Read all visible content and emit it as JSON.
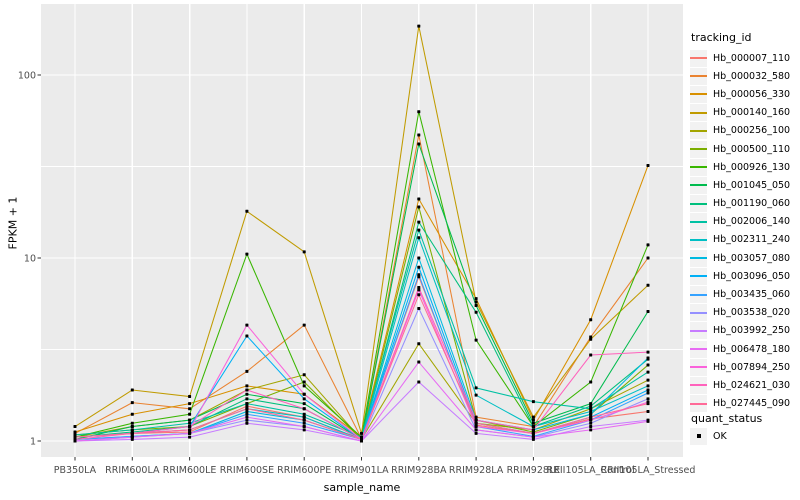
{
  "y_axis": {
    "title": "FPKM + 1",
    "tick_labels": [
      "100",
      "10",
      "1"
    ],
    "tick_values": [
      100,
      10,
      1
    ]
  },
  "x_axis": {
    "title": "sample_name"
  },
  "legend": {
    "tracking_title": "tracking_id",
    "quant_title": "quant_status",
    "quant_items": [
      {
        "label": "OK",
        "marker_color": "#000000"
      }
    ]
  },
  "chart_data": {
    "type": "line",
    "title": "",
    "xlabel": "sample_name",
    "ylabel": "FPKM + 1",
    "scale_y": "log10",
    "ylim": [
      0.82,
      240
    ],
    "y_major_ticks": [
      1,
      10,
      100
    ],
    "y_minor_ticks": [
      3.162,
      31.62
    ],
    "grid": true,
    "legend_position": "right",
    "point_color": "#000000",
    "panel_background": "#EBEBEB",
    "gridline_color": "#FFFFFF",
    "x_categories": [
      "PB350LA",
      "RRIM600LA",
      "RRIM600LE",
      "RRIM600SE",
      "RRIM600PE",
      "RRIM901LA",
      "RRIM928BA",
      "RRIM928LA",
      "RRIM928LE",
      "RRII105LA_Control",
      "RRII105LA_Stressed"
    ],
    "series": [
      {
        "name": "Hb_000007_110",
        "color": "#F8766D",
        "values": [
          1.05,
          1.1,
          1.12,
          1.55,
          1.35,
          1.02,
          7.9,
          1.22,
          1.1,
          1.32,
          1.45
        ]
      },
      {
        "name": "Hb_000032_580",
        "color": "#EA8331",
        "values": [
          1.1,
          1.62,
          1.5,
          2.4,
          4.3,
          1.03,
          47,
          1.35,
          1.2,
          3.7,
          10.0
        ]
      },
      {
        "name": "Hb_000056_330",
        "color": "#D89000",
        "values": [
          1.12,
          1.4,
          1.6,
          2.0,
          1.8,
          1.05,
          21,
          6.0,
          1.3,
          4.6,
          32
        ]
      },
      {
        "name": "Hb_000140_160",
        "color": "#C09B00",
        "values": [
          1.2,
          1.9,
          1.75,
          18,
          10.8,
          1.1,
          185,
          5.75,
          1.35,
          3.6,
          7.1
        ]
      },
      {
        "name": "Hb_000256_100",
        "color": "#A3A500",
        "values": [
          1.05,
          1.2,
          1.3,
          1.9,
          2.3,
          1.02,
          3.4,
          1.25,
          1.15,
          1.5,
          2.15
        ]
      },
      {
        "name": "Hb_000500_110",
        "color": "#7CAE00",
        "values": [
          1.08,
          1.15,
          1.2,
          1.6,
          2.1,
          1.02,
          19,
          1.3,
          1.12,
          1.4,
          2.6
        ]
      },
      {
        "name": "Hb_000926_130",
        "color": "#39B600",
        "values": [
          1.05,
          1.25,
          1.4,
          10.5,
          2.0,
          1.05,
          63,
          3.56,
          1.2,
          2.1,
          11.8
        ]
      },
      {
        "name": "Hb_001045_050",
        "color": "#00BB4E",
        "values": [
          1.02,
          1.2,
          1.3,
          1.8,
          1.6,
          1.02,
          42,
          5.5,
          1.25,
          1.6,
          5.1
        ]
      },
      {
        "name": "Hb_001190_060",
        "color": "#00BF7D",
        "values": [
          1.05,
          1.12,
          1.2,
          1.7,
          1.5,
          1.02,
          15.7,
          5.05,
          1.2,
          1.55,
          2.8
        ]
      },
      {
        "name": "Hb_002006_140",
        "color": "#00C1A3",
        "values": [
          1.08,
          1.15,
          1.25,
          1.6,
          1.4,
          1.05,
          14.2,
          1.95,
          1.64,
          1.5,
          2.38
        ]
      },
      {
        "name": "Hb_002311_240",
        "color": "#00BFC4",
        "values": [
          1.05,
          1.1,
          1.15,
          1.5,
          1.35,
          1.02,
          12.9,
          1.78,
          1.2,
          1.45,
          2.0
        ]
      },
      {
        "name": "Hb_003057_080",
        "color": "#00BAE0",
        "values": [
          1.02,
          1.06,
          1.1,
          1.45,
          1.3,
          1.02,
          10.0,
          1.3,
          1.15,
          1.4,
          2.84
        ]
      },
      {
        "name": "Hb_003096_050",
        "color": "#00B0F6",
        "values": [
          1.05,
          1.1,
          1.2,
          3.75,
          1.7,
          1.02,
          8.9,
          1.25,
          1.1,
          1.35,
          1.9
        ]
      },
      {
        "name": "Hb_003435_060",
        "color": "#35A2FF",
        "values": [
          1.02,
          1.06,
          1.1,
          1.4,
          1.25,
          1.02,
          8.1,
          1.2,
          1.06,
          1.3,
          1.83
        ]
      },
      {
        "name": "Hb_003538_020",
        "color": "#9590FF",
        "values": [
          1.0,
          1.05,
          1.1,
          1.3,
          1.2,
          1.0,
          5.3,
          1.15,
          1.05,
          1.25,
          1.7
        ]
      },
      {
        "name": "Hb_003992_250",
        "color": "#C77CFF",
        "values": [
          1.0,
          1.02,
          1.05,
          1.25,
          1.15,
          1.0,
          2.1,
          1.1,
          1.02,
          1.2,
          1.3
        ]
      },
      {
        "name": "Hb_006478_180",
        "color": "#E76BF3",
        "values": [
          1.0,
          1.05,
          1.1,
          1.35,
          1.2,
          1.0,
          2.7,
          1.15,
          1.05,
          1.15,
          1.28
        ]
      },
      {
        "name": "Hb_007894_250",
        "color": "#FA62DB",
        "values": [
          1.05,
          1.1,
          1.15,
          4.3,
          1.8,
          1.02,
          6.7,
          1.2,
          1.1,
          1.3,
          1.63
        ]
      },
      {
        "name": "Hb_024621_030",
        "color": "#FF62BC",
        "values": [
          1.02,
          1.1,
          1.2,
          1.9,
          1.5,
          1.02,
          6.9,
          1.3,
          1.15,
          2.95,
          3.06
        ]
      },
      {
        "name": "Hb_027445_090",
        "color": "#FF6A98",
        "values": [
          1.05,
          1.1,
          1.15,
          1.5,
          1.3,
          1.02,
          6.3,
          1.25,
          1.1,
          1.35,
          1.6
        ]
      }
    ]
  }
}
